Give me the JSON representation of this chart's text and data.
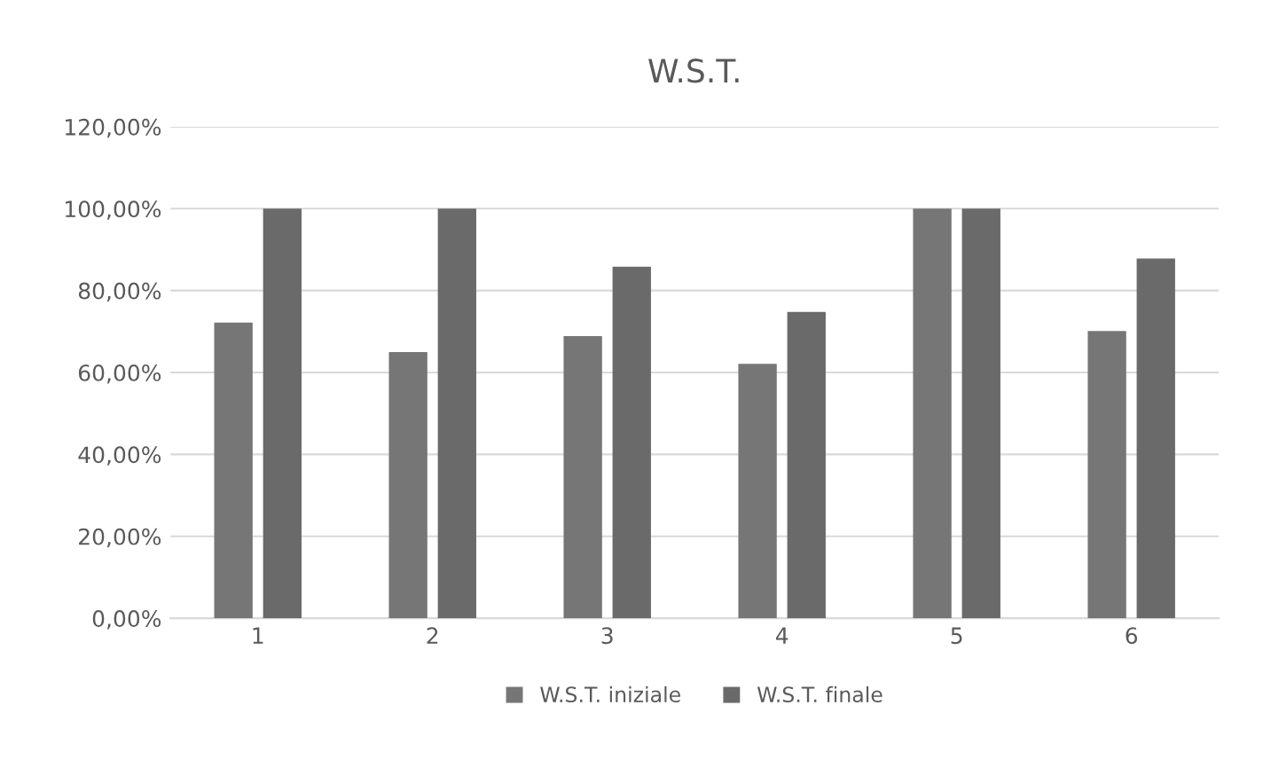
{
  "chart_data": {
    "type": "bar",
    "title": "W.S.T.",
    "categories": [
      "1",
      "2",
      "3",
      "4",
      "5",
      "6"
    ],
    "series": [
      {
        "name": "W.S.T. iniziale",
        "color": "#767676",
        "values": [
          72.2,
          65,
          68.9,
          62.1,
          100,
          70.1
        ]
      },
      {
        "name": "W.S.T. finale",
        "color": "#6a6a6a",
        "values": [
          100,
          100,
          85.8,
          74.8,
          100,
          87.8
        ]
      }
    ],
    "ylim": [
      0,
      120
    ],
    "yticks": [
      {
        "value": 0,
        "label": "0,00%"
      },
      {
        "value": 20,
        "label": "20,00%"
      },
      {
        "value": 40,
        "label": "40,00%"
      },
      {
        "value": 60,
        "label": "60,00%"
      },
      {
        "value": 80,
        "label": "80,00%"
      },
      {
        "value": 100,
        "label": "100,00%"
      },
      {
        "value": 120,
        "label": "120,00%"
      }
    ],
    "grid": "y",
    "legend": "bottom"
  }
}
